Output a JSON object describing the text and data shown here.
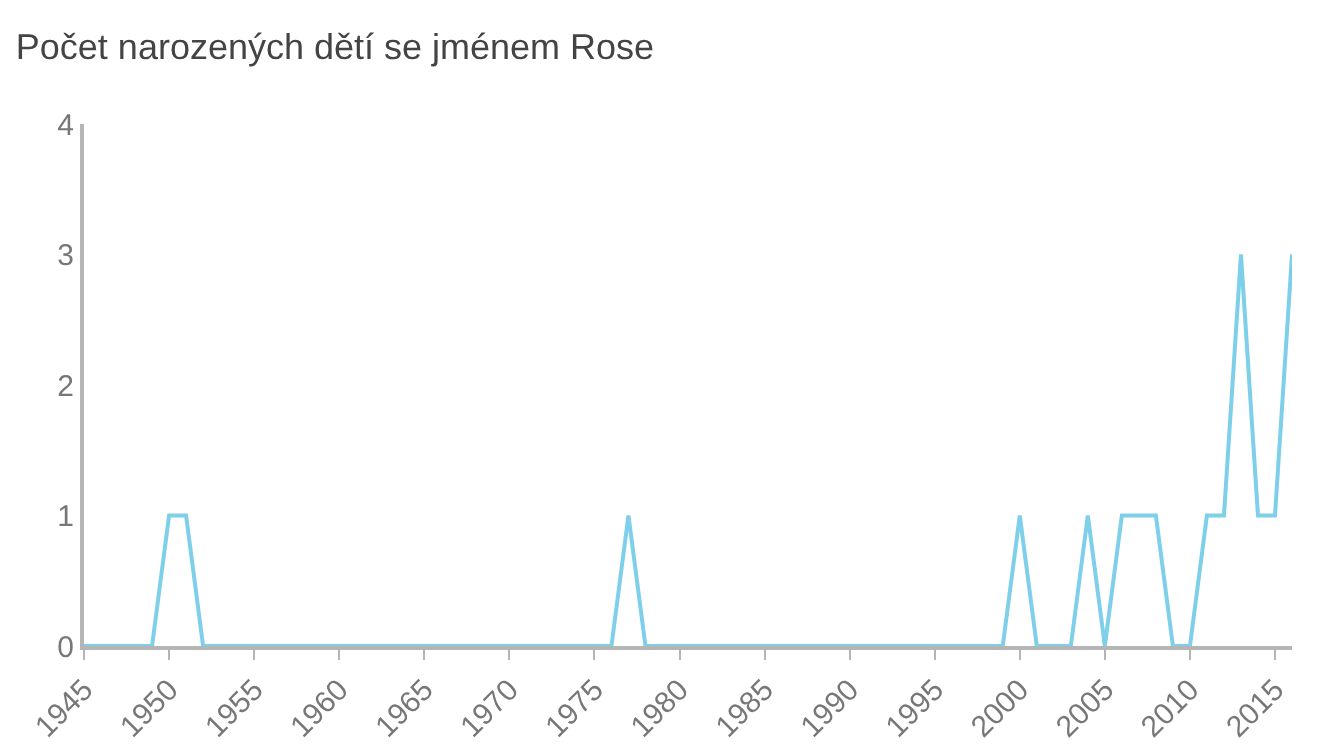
{
  "chart_data": {
    "type": "line",
    "title": "Počet narozených dětí se jménem Rose",
    "x": [
      1945,
      1946,
      1947,
      1948,
      1949,
      1950,
      1951,
      1952,
      1953,
      1954,
      1955,
      1956,
      1957,
      1958,
      1959,
      1960,
      1961,
      1962,
      1963,
      1964,
      1965,
      1966,
      1967,
      1968,
      1969,
      1970,
      1971,
      1972,
      1973,
      1974,
      1975,
      1976,
      1977,
      1978,
      1979,
      1980,
      1981,
      1982,
      1983,
      1984,
      1985,
      1986,
      1987,
      1988,
      1989,
      1990,
      1991,
      1992,
      1993,
      1994,
      1995,
      1996,
      1997,
      1998,
      1999,
      2000,
      2001,
      2002,
      2003,
      2004,
      2005,
      2006,
      2007,
      2008,
      2009,
      2010,
      2011,
      2012,
      2013,
      2014,
      2015,
      2016
    ],
    "series": [
      {
        "color": "#7ecfea",
        "values": [
          0,
          0,
          0,
          0,
          0,
          1,
          1,
          0,
          0,
          0,
          0,
          0,
          0,
          0,
          0,
          0,
          0,
          0,
          0,
          0,
          0,
          0,
          0,
          0,
          0,
          0,
          0,
          0,
          0,
          0,
          0,
          0,
          1,
          0,
          0,
          0,
          0,
          0,
          0,
          0,
          0,
          0,
          0,
          0,
          0,
          0,
          0,
          0,
          0,
          0,
          0,
          0,
          0,
          0,
          0,
          1,
          0,
          0,
          0,
          1,
          0,
          1,
          1,
          1,
          0,
          0,
          1,
          1,
          3,
          1,
          1,
          3
        ]
      }
    ],
    "xlim": [
      1945,
      2016
    ],
    "xticks": [
      1945,
      1950,
      1955,
      1960,
      1965,
      1970,
      1975,
      1980,
      1985,
      1990,
      1995,
      2000,
      2005,
      2010,
      2015
    ],
    "ylim": [
      0,
      4
    ],
    "yticks": [
      0,
      1,
      2,
      3,
      4
    ],
    "grid": false,
    "marker": "none",
    "line_style": "solid"
  }
}
